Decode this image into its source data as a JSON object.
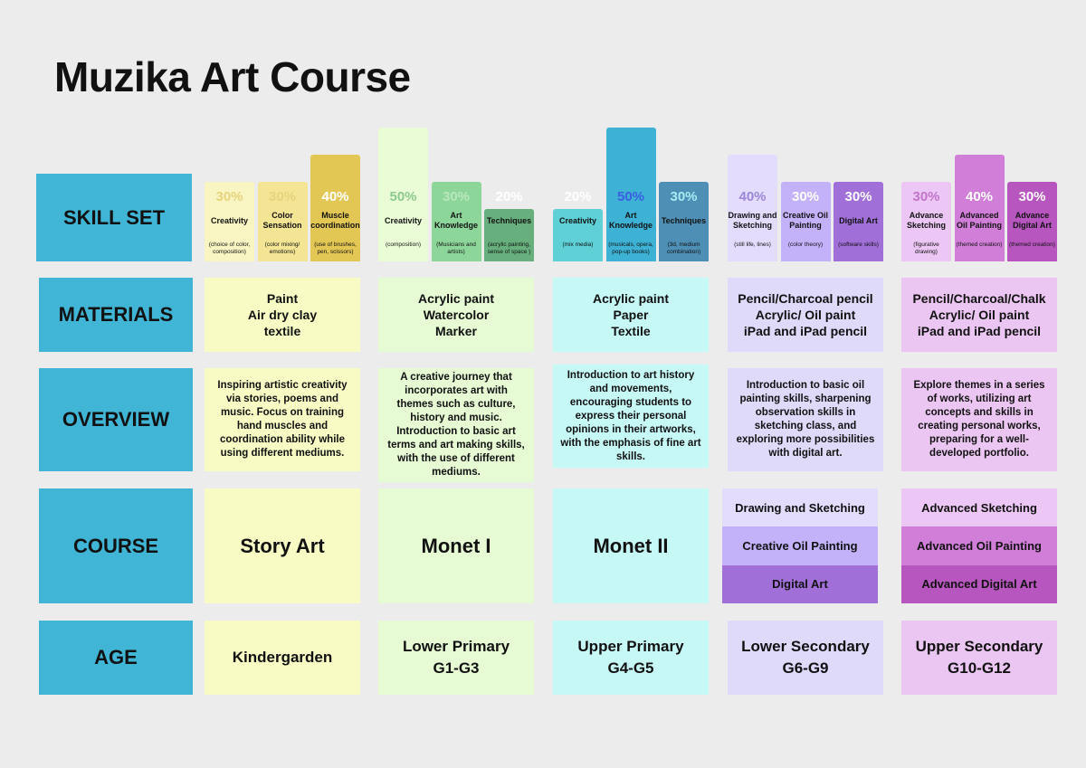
{
  "title": "Muzika Art Course",
  "row_labels": {
    "skill_set": "SKILL SET",
    "materials": "MATERIALS",
    "overview": "OVERVIEW",
    "course": "COURSE",
    "age": "AGE"
  },
  "colors": {
    "label_bg": "#40b5d6",
    "kindergarden": "#f8fcc4",
    "lower_primary": "#e6fad4",
    "upper_primary": "#c6f8f6",
    "lower_secondary": "#dfdafa",
    "upper_secondary": "#ecc6f2"
  },
  "columns": [
    {
      "skills": [
        {
          "pct": "30%",
          "name": "Creativity",
          "desc": "(choice of color, composition)",
          "color": "#f8f5c2",
          "pct_color": "#e6d37e",
          "level": 0.3
        },
        {
          "pct": "30%",
          "name": "Color Sensation",
          "desc": "(color mixing/ emotions)",
          "color": "#f3e594",
          "pct_color": "#e6d37e",
          "level": 0.3
        },
        {
          "pct": "40%",
          "name": "Muscle coordination",
          "desc": "(use of brushes, pen, scissors)",
          "color": "#e3c754",
          "pct_color": "#ffffff",
          "level": 0.4
        }
      ],
      "materials": [
        "Paint",
        "Air dry clay",
        "textile"
      ],
      "overview": "Inspiring artistic creativity via stories, poems and music. Focus on training hand muscles and coordination ability while using different mediums.",
      "course": "Story Art",
      "age": [
        "Kindergarden"
      ]
    },
    {
      "skills": [
        {
          "pct": "50%",
          "name": "Creativity",
          "desc": "(composition)",
          "color": "#eafcd6",
          "pct_color": "#8cc98e",
          "level": 0.5
        },
        {
          "pct": "30%",
          "name": "Art Knowledge",
          "desc": "(Musicians and artists)",
          "color": "#8dd69a",
          "pct_color": "#b9e7bd",
          "level": 0.3
        },
        {
          "pct": "20%",
          "name": "Techniques",
          "desc": "(acrylic painting, sense of space )",
          "color": "#67b07d",
          "pct_color": "#ffffff",
          "level": 0.2
        }
      ],
      "materials": [
        "Acrylic paint",
        "Watercolor",
        "Marker"
      ],
      "overview": "A creative journey that incorporates art with themes such as culture, history and music. Introduction to basic art terms and art making skills, with the use of different mediums.",
      "course": "Monet I",
      "age": [
        "Lower Primary",
        "G1-G3"
      ]
    },
    {
      "skills": [
        {
          "pct": "20%",
          "name": "Creativity",
          "desc": "(mix media)",
          "color": "#5ed0d6",
          "pct_color": "#ffffff",
          "level": 0.2
        },
        {
          "pct": "50%",
          "name": "Art Knowledge",
          "desc": "(musicals, opera, pop-up books)",
          "color": "#3db2d4",
          "pct_color": "#3a5fe0",
          "level": 0.5
        },
        {
          "pct": "30%",
          "name": "Techniques",
          "desc": "(3d, medium combination)",
          "color": "#4e8fb5",
          "pct_color": "#a7ecf2",
          "level": 0.3
        }
      ],
      "materials": [
        "Acrylic paint",
        "Paper",
        "Textile"
      ],
      "overview": "Introduction to art history and movements, encouraging students to express their personal opinions in their artworks, with the emphasis of fine art skills.",
      "course": "Monet II",
      "age": [
        "Upper Primary",
        "G4-G5"
      ]
    },
    {
      "skills": [
        {
          "pct": "40%",
          "name": "Drawing and Sketching",
          "desc": "(still life, lines)",
          "color": "#e3dcfc",
          "pct_color": "#9b86d8",
          "level": 0.4
        },
        {
          "pct": "30%",
          "name": "Creative Oil Painting",
          "desc": "(color theory)",
          "color": "#c3b2fa",
          "pct_color": "#ffffff",
          "level": 0.3
        },
        {
          "pct": "30%",
          "name": "Digital Art",
          "desc": "(software skills)",
          "color": "#a06fd8",
          "pct_color": "#ffffff",
          "level": 0.3
        }
      ],
      "materials": [
        "Pencil/Charcoal pencil",
        "Acrylic/ Oil paint",
        "iPad and iPad pencil"
      ],
      "overview": "Introduction to basic oil painting skills, sharpening observation skills in sketching class, and exploring more possibilities with digital art.",
      "sub_courses": [
        "Drawing and Sketching",
        "Creative Oil Painting",
        "Digital Art"
      ],
      "sub_colors": [
        "#e3dcfc",
        "#c3b2fa",
        "#a06fd8"
      ],
      "age": [
        "Lower Secondary",
        "G6-G9"
      ]
    },
    {
      "skills": [
        {
          "pct": "30%",
          "name": "Advance Sketching",
          "desc": "(figurative drawing)",
          "color": "#ecc6f4",
          "pct_color": "#c174c9",
          "level": 0.3
        },
        {
          "pct": "40%",
          "name": "Advanced Oil Painting",
          "desc": "(themed creation)",
          "color": "#d07ed8",
          "pct_color": "#ffffff",
          "level": 0.4
        },
        {
          "pct": "30%",
          "name": "Advance Digital Art",
          "desc": "(themed creation)",
          "color": "#b756bf",
          "pct_color": "#ffffff",
          "level": 0.3
        }
      ],
      "materials": [
        "Pencil/Charcoal/Chalk",
        "Acrylic/ Oil paint",
        "iPad and iPad pencil"
      ],
      "overview": "Explore themes in a series of works, utilizing art concepts and skills in creating personal works, preparing for a well-developed portfolio.",
      "sub_courses": [
        "Advanced Sketching",
        "Advanced Oil Painting",
        "Advanced Digital Art"
      ],
      "sub_colors": [
        "#ecc6f4",
        "#d07ed8",
        "#b756bf"
      ],
      "age": [
        "Upper Secondary",
        "G10-G12"
      ]
    }
  ]
}
